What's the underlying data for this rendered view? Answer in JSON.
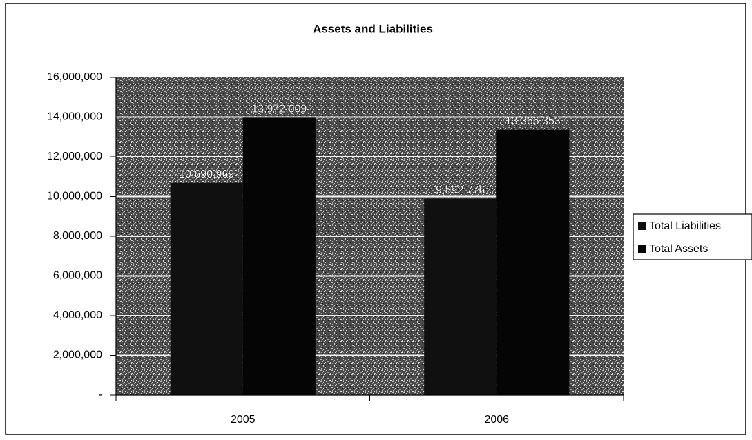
{
  "chart_data": {
    "type": "bar",
    "title": "Assets and Liabilities",
    "categories": [
      "2005",
      "2006"
    ],
    "series": [
      {
        "name": "Total Liabilities",
        "color": "#101010",
        "values": [
          10690969,
          9892776
        ],
        "value_labels": [
          "10,690,969",
          "9,892,776"
        ]
      },
      {
        "name": "Total Assets",
        "color": "#050505",
        "values": [
          13972009,
          13366353
        ],
        "value_labels": [
          "13,972,009",
          "13,366,353"
        ]
      }
    ],
    "ylim": [
      0,
      16000000
    ],
    "yticks": [
      {
        "value": 0,
        "label": "-"
      },
      {
        "value": 2000000,
        "label": "2,000,000"
      },
      {
        "value": 4000000,
        "label": "4,000,000"
      },
      {
        "value": 6000000,
        "label": "6,000,000"
      },
      {
        "value": 8000000,
        "label": "8,000,000"
      },
      {
        "value": 10000000,
        "label": "10,000,000"
      },
      {
        "value": 12000000,
        "label": "12,000,000"
      },
      {
        "value": 14000000,
        "label": "14,000,000"
      },
      {
        "value": 16000000,
        "label": "16,000,000"
      }
    ],
    "grid": true,
    "legend": "right"
  }
}
